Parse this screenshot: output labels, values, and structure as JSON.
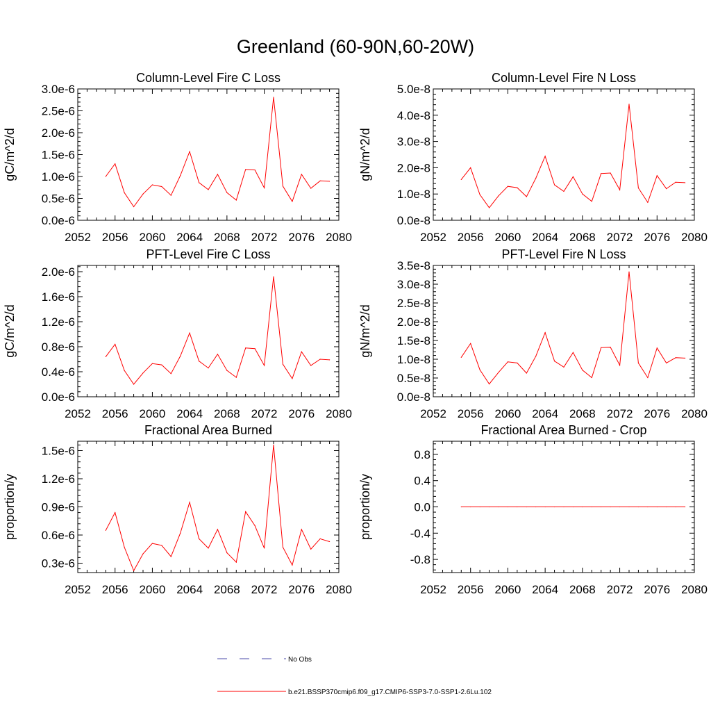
{
  "figure": {
    "title": "Greenland (60-90N,60-20W)",
    "line_color": "#ff0000",
    "obs_color": "#4a4aa8"
  },
  "legend": {
    "placement": "bottom-center",
    "entries": [
      {
        "label": "No Obs",
        "style": "dashed",
        "color": "#4a4aa8"
      },
      {
        "label": "b.e21.BSSP370cmip6.f09_g17.CMIP6-SSP3-7.0-SSP1-2.6Lu.102",
        "style": "solid",
        "color": "#ff0000"
      }
    ]
  },
  "chart_data": [
    {
      "type": "line",
      "title": "Column-Level Fire C Loss",
      "ylabel": "gC/m^2/d",
      "xlim": [
        2052,
        2080
      ],
      "xticks": [
        2052,
        2056,
        2060,
        2064,
        2068,
        2072,
        2076,
        2080
      ],
      "ylim": [
        0,
        3e-06
      ],
      "yticks": [
        0,
        5e-07,
        1e-06,
        1.5e-06,
        2e-06,
        2.5e-06,
        3e-06
      ],
      "yticklabels": [
        "0.0e-6",
        "0.5e-6",
        "1.0e-6",
        "1.5e-6",
        "2.0e-6",
        "2.5e-6",
        "3.0e-6"
      ],
      "x": [
        2055,
        2056,
        2057,
        2058,
        2059,
        2060,
        2061,
        2062,
        2063,
        2064,
        2065,
        2066,
        2067,
        2068,
        2069,
        2070,
        2071,
        2072,
        2073,
        2074,
        2075,
        2076,
        2077,
        2078,
        2079
      ],
      "y": [
        1e-06,
        1.29e-06,
        6.3e-07,
        3.1e-07,
        6e-07,
        8.1e-07,
        7.7e-07,
        5.7e-07,
        1.02e-06,
        1.57e-06,
        8.6e-07,
        7e-07,
        1.05e-06,
        6.3e-07,
        4.6e-07,
        1.16e-06,
        1.15e-06,
        7.4e-07,
        2.81e-06,
        7.8e-07,
        4.3e-07,
        1.05e-06,
        7.3e-07,
        9e-07,
        8.9e-07
      ]
    },
    {
      "type": "line",
      "title": "Column-Level Fire N Loss",
      "ylabel": "gN/m^2/d",
      "xlim": [
        2052,
        2080
      ],
      "xticks": [
        2052,
        2056,
        2060,
        2064,
        2068,
        2072,
        2076,
        2080
      ],
      "ylim": [
        0,
        5e-08
      ],
      "yticks": [
        0,
        1e-08,
        2e-08,
        3e-08,
        4e-08,
        5e-08
      ],
      "yticklabels": [
        "0.0e-8",
        "1.0e-8",
        "2.0e-8",
        "3.0e-8",
        "4.0e-8",
        "5.0e-8"
      ],
      "x": [
        2055,
        2056,
        2057,
        2058,
        2059,
        2060,
        2061,
        2062,
        2063,
        2064,
        2065,
        2066,
        2067,
        2068,
        2069,
        2070,
        2071,
        2072,
        2073,
        2074,
        2075,
        2076,
        2077,
        2078,
        2079
      ],
      "y": [
        1.55e-08,
        2e-08,
        9.8e-09,
        4.8e-09,
        9.3e-09,
        1.29e-08,
        1.24e-08,
        9e-09,
        1.6e-08,
        2.44e-08,
        1.35e-08,
        1.1e-08,
        1.66e-08,
        1e-08,
        7.2e-09,
        1.78e-08,
        1.8e-08,
        1.16e-08,
        4.42e-08,
        1.23e-08,
        6.8e-09,
        1.7e-08,
        1.2e-08,
        1.45e-08,
        1.43e-08
      ]
    },
    {
      "type": "line",
      "title": "PFT-Level Fire C Loss",
      "ylabel": "gC/m^2/d",
      "xlim": [
        2052,
        2080
      ],
      "xticks": [
        2052,
        2056,
        2060,
        2064,
        2068,
        2072,
        2076,
        2080
      ],
      "ylim": [
        0,
        2.1e-06
      ],
      "yticks": [
        0,
        4e-07,
        8e-07,
        1.2e-06,
        1.6e-06,
        2e-06
      ],
      "yticklabels": [
        "0.0e-6",
        "0.4e-6",
        "0.8e-6",
        "1.2e-6",
        "1.6e-6",
        "2.0e-6"
      ],
      "x": [
        2055,
        2056,
        2057,
        2058,
        2059,
        2060,
        2061,
        2062,
        2063,
        2064,
        2065,
        2066,
        2067,
        2068,
        2069,
        2070,
        2071,
        2072,
        2073,
        2074,
        2075,
        2076,
        2077,
        2078,
        2079
      ],
      "y": [
        6.4e-07,
        8.4e-07,
        4.2e-07,
        2e-07,
        3.8e-07,
        5.3e-07,
        5.1e-07,
        3.7e-07,
        6.5e-07,
        1.02e-06,
        5.7e-07,
        4.6e-07,
        6.8e-07,
        4.2e-07,
        3.1e-07,
        7.8e-07,
        7.7e-07,
        5e-07,
        1.92e-06,
        5.2e-07,
        2.9e-07,
        7.2e-07,
        5e-07,
        6e-07,
        5.9e-07
      ]
    },
    {
      "type": "line",
      "title": "PFT-Level Fire N Loss",
      "ylabel": "gN/m^2/d",
      "xlim": [
        2052,
        2080
      ],
      "xticks": [
        2052,
        2056,
        2060,
        2064,
        2068,
        2072,
        2076,
        2080
      ],
      "ylim": [
        0,
        3.5e-08
      ],
      "yticks": [
        0,
        5e-09,
        1e-08,
        1.5e-08,
        2e-08,
        2.5e-08,
        3e-08,
        3.5e-08
      ],
      "yticklabels": [
        "0.0e-8",
        "0.5e-8",
        "1.0e-8",
        "1.5e-8",
        "2.0e-8",
        "2.5e-8",
        "3.0e-8",
        "3.5e-8"
      ],
      "x": [
        2055,
        2056,
        2057,
        2058,
        2059,
        2060,
        2061,
        2062,
        2063,
        2064,
        2065,
        2066,
        2067,
        2068,
        2069,
        2070,
        2071,
        2072,
        2073,
        2074,
        2075,
        2076,
        2077,
        2078,
        2079
      ],
      "y": [
        1.05e-08,
        1.42e-08,
        7.2e-09,
        3.4e-09,
        6.5e-09,
        9.3e-09,
        9e-09,
        6.3e-09,
        1.08e-08,
        1.71e-08,
        9.5e-09,
        7.9e-09,
        1.18e-08,
        7.1e-09,
        5.1e-09,
        1.31e-08,
        1.32e-08,
        8.4e-09,
        3.33e-08,
        9e-09,
        5.1e-09,
        1.3e-08,
        9e-09,
        1.04e-08,
        1.03e-08
      ]
    },
    {
      "type": "line",
      "title": "Fractional Area Burned",
      "ylabel": "proportion/y",
      "xlim": [
        2052,
        2080
      ],
      "xticks": [
        2052,
        2056,
        2060,
        2064,
        2068,
        2072,
        2076,
        2080
      ],
      "ylim": [
        2e-07,
        1.6e-06
      ],
      "yticks": [
        3e-07,
        6e-07,
        9e-07,
        1.2e-06,
        1.5e-06
      ],
      "yticklabels": [
        "0.3e-6",
        "0.6e-6",
        "0.9e-6",
        "1.2e-6",
        "1.5e-6"
      ],
      "x": [
        2055,
        2056,
        2057,
        2058,
        2059,
        2060,
        2061,
        2062,
        2063,
        2064,
        2065,
        2066,
        2067,
        2068,
        2069,
        2070,
        2071,
        2072,
        2073,
        2074,
        2075,
        2076,
        2077,
        2078,
        2079
      ],
      "y": [
        6.5e-07,
        8.4e-07,
        4.7e-07,
        2.2e-07,
        4e-07,
        5.1e-07,
        4.9e-07,
        3.7e-07,
        6.2e-07,
        9.5e-07,
        5.6e-07,
        4.6e-07,
        6.6e-07,
        4.1e-07,
        3.1e-07,
        8.5e-07,
        7e-07,
        4.6e-07,
        1.56e-06,
        4.7e-07,
        2.8e-07,
        6.6e-07,
        4.5e-07,
        5.6e-07,
        5.3e-07
      ]
    },
    {
      "type": "line",
      "title": "Fractional Area Burned - Crop",
      "ylabel": "proportion/y",
      "xlim": [
        2052,
        2080
      ],
      "xticks": [
        2052,
        2056,
        2060,
        2064,
        2068,
        2072,
        2076,
        2080
      ],
      "ylim": [
        -1.0,
        1.0
      ],
      "yticks": [
        -0.8,
        -0.4,
        0.0,
        0.4,
        0.8
      ],
      "yticklabels": [
        "-0.8",
        "-0.4",
        "0.0",
        "0.4",
        "0.8"
      ],
      "x": [
        2055,
        2056,
        2057,
        2058,
        2059,
        2060,
        2061,
        2062,
        2063,
        2064,
        2065,
        2066,
        2067,
        2068,
        2069,
        2070,
        2071,
        2072,
        2073,
        2074,
        2075,
        2076,
        2077,
        2078,
        2079
      ],
      "y": [
        0,
        0,
        0,
        0,
        0,
        0,
        0,
        0,
        0,
        0,
        0,
        0,
        0,
        0,
        0,
        0,
        0,
        0,
        0,
        0,
        0,
        0,
        0,
        0,
        0
      ]
    }
  ]
}
